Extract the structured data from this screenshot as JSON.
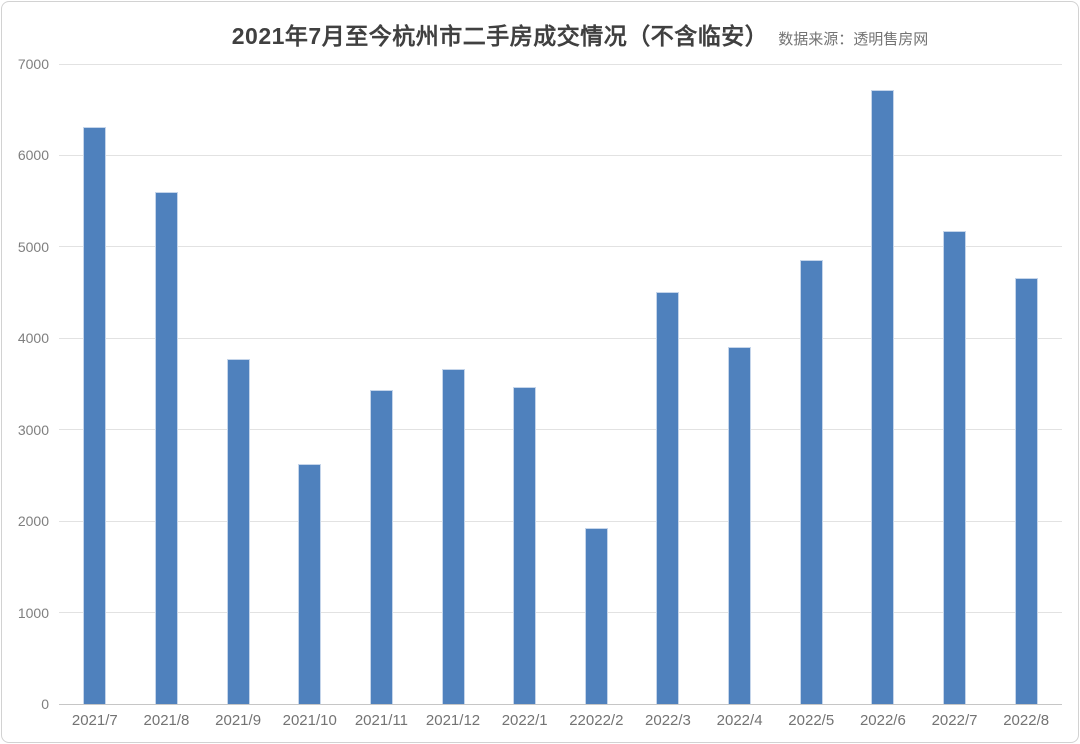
{
  "header": {
    "title": "2021年7月至今杭州市二手房成交情况（不含临安）",
    "source": "数据来源：透明售房网"
  },
  "chart_data": {
    "type": "bar",
    "title": "2021年7月至今杭州市二手房成交情况（不含临安）",
    "source_note": "数据来源：透明售房网",
    "categories": [
      "2021/7",
      "2021/8",
      "2021/9",
      "2021/10",
      "2021/11",
      "2021/12",
      "2022/1",
      "22022/2",
      "2022/3",
      "2022/4",
      "2022/5",
      "2022/6",
      "2022/7",
      "2022/8"
    ],
    "values": [
      6310,
      5600,
      3770,
      2630,
      3430,
      3660,
      3470,
      1930,
      4510,
      3900,
      4860,
      6720,
      5170,
      4660
    ],
    "xlabel": "",
    "ylabel": "",
    "ylim": [
      0,
      7000
    ],
    "ytick_step": 1000,
    "yticks": [
      "0",
      "1000",
      "2000",
      "3000",
      "4000",
      "5000",
      "6000",
      "7000"
    ],
    "grid": true,
    "legend": "none",
    "colors": {
      "bar": "#4f81bd",
      "bar_border": "#c5d5ea",
      "gridline": "#e2e2e2",
      "baseline": "#c6c6c6",
      "title_text": "#404040",
      "source_text": "#737373",
      "tick_label_text": "#7f7f7f",
      "frame_border": "#d2d2d2"
    }
  }
}
